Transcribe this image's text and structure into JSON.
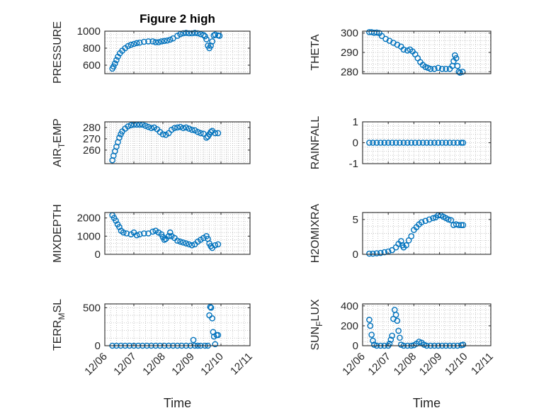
{
  "figure_title": "Figure 2 high",
  "chart_data": [
    {
      "type": "scatter",
      "ylabel": "PRESSURE",
      "title": "Figure 2 high",
      "xlim": [
        0,
        5
      ],
      "ylim": [
        500,
        1000
      ],
      "yticks": [
        600,
        800,
        1000
      ],
      "points": [
        [
          0.26,
          560
        ],
        [
          0.3,
          585
        ],
        [
          0.35,
          620
        ],
        [
          0.4,
          660
        ],
        [
          0.45,
          700
        ],
        [
          0.52,
          740
        ],
        [
          0.6,
          770
        ],
        [
          0.7,
          800
        ],
        [
          0.8,
          825
        ],
        [
          0.9,
          840
        ],
        [
          1.0,
          850
        ],
        [
          1.1,
          860
        ],
        [
          1.2,
          865
        ],
        [
          1.35,
          875
        ],
        [
          1.5,
          880
        ],
        [
          1.65,
          880
        ],
        [
          1.75,
          870
        ],
        [
          1.85,
          870
        ],
        [
          1.95,
          880
        ],
        [
          2.05,
          885
        ],
        [
          2.15,
          890
        ],
        [
          2.25,
          900
        ],
        [
          2.35,
          915
        ],
        [
          2.5,
          945
        ],
        [
          2.6,
          965
        ],
        [
          2.7,
          975
        ],
        [
          2.8,
          980
        ],
        [
          2.9,
          975
        ],
        [
          3.0,
          975
        ],
        [
          3.1,
          980
        ],
        [
          3.2,
          975
        ],
        [
          3.3,
          965
        ],
        [
          3.4,
          955
        ],
        [
          3.45,
          940
        ],
        [
          3.5,
          905
        ],
        [
          3.55,
          830
        ],
        [
          3.6,
          800
        ],
        [
          3.65,
          830
        ],
        [
          3.7,
          880
        ],
        [
          3.75,
          950
        ],
        [
          3.8,
          960
        ],
        [
          3.9,
          950
        ],
        [
          3.95,
          945
        ]
      ]
    },
    {
      "type": "scatter",
      "ylabel": "THETA",
      "xlim": [
        0,
        5
      ],
      "ylim": [
        279,
        301
      ],
      "yticks": [
        280,
        290,
        300
      ],
      "points": [
        [
          0.26,
          300.5
        ],
        [
          0.35,
          300.5
        ],
        [
          0.45,
          300.2
        ],
        [
          0.55,
          300.3
        ],
        [
          0.65,
          300
        ],
        [
          0.75,
          298.5
        ],
        [
          0.9,
          297
        ],
        [
          1.05,
          296
        ],
        [
          1.2,
          295
        ],
        [
          1.35,
          294
        ],
        [
          1.5,
          293
        ],
        [
          1.6,
          291.5
        ],
        [
          1.75,
          291
        ],
        [
          1.85,
          291.5
        ],
        [
          1.95,
          290.5
        ],
        [
          2.05,
          289
        ],
        [
          2.15,
          287
        ],
        [
          2.25,
          285
        ],
        [
          2.35,
          283.5
        ],
        [
          2.45,
          282.5
        ],
        [
          2.55,
          282
        ],
        [
          2.65,
          281.5
        ],
        [
          2.8,
          281.5
        ],
        [
          2.95,
          282
        ],
        [
          3.1,
          281.5
        ],
        [
          3.25,
          281.5
        ],
        [
          3.4,
          281.5
        ],
        [
          3.5,
          283
        ],
        [
          3.55,
          285.5
        ],
        [
          3.6,
          288.5
        ],
        [
          3.65,
          287
        ],
        [
          3.7,
          283
        ],
        [
          3.75,
          280
        ],
        [
          3.8,
          279.5
        ],
        [
          3.9,
          280
        ]
      ]
    },
    {
      "type": "scatter",
      "ylabel": "AIR_TEMP",
      "xlim": [
        0,
        5
      ],
      "ylim": [
        248,
        285
      ],
      "yticks": [
        260,
        270,
        280
      ],
      "points": [
        [
          0.26,
          251
        ],
        [
          0.3,
          255
        ],
        [
          0.35,
          259
        ],
        [
          0.4,
          263
        ],
        [
          0.45,
          267
        ],
        [
          0.5,
          271
        ],
        [
          0.55,
          274
        ],
        [
          0.6,
          276.5
        ],
        [
          0.7,
          279
        ],
        [
          0.8,
          281
        ],
        [
          0.9,
          282
        ],
        [
          1.0,
          282.5
        ],
        [
          1.1,
          282.5
        ],
        [
          1.2,
          282.5
        ],
        [
          1.3,
          282.5
        ],
        [
          1.4,
          281.5
        ],
        [
          1.5,
          280.5
        ],
        [
          1.6,
          279.5
        ],
        [
          1.7,
          280
        ],
        [
          1.8,
          278.5
        ],
        [
          1.9,
          276
        ],
        [
          2.0,
          274
        ],
        [
          2.1,
          273.5
        ],
        [
          2.2,
          275
        ],
        [
          2.3,
          278
        ],
        [
          2.4,
          279.5
        ],
        [
          2.5,
          280
        ],
        [
          2.6,
          280.5
        ],
        [
          2.7,
          279.5
        ],
        [
          2.8,
          280
        ],
        [
          2.9,
          279
        ],
        [
          3.0,
          278
        ],
        [
          3.1,
          277.5
        ],
        [
          3.2,
          276
        ],
        [
          3.3,
          275
        ],
        [
          3.4,
          274.5
        ],
        [
          3.5,
          271
        ],
        [
          3.55,
          272
        ],
        [
          3.6,
          274
        ],
        [
          3.65,
          276
        ],
        [
          3.7,
          277
        ],
        [
          3.8,
          275
        ],
        [
          3.9,
          275
        ]
      ]
    },
    {
      "type": "scatter",
      "ylabel": "RAINFALL",
      "xlim": [
        0,
        5
      ],
      "ylim": [
        -1,
        1
      ],
      "yticks": [
        -1,
        0,
        1
      ],
      "points": [
        [
          0.26,
          0
        ],
        [
          0.4,
          0
        ],
        [
          0.55,
          0
        ],
        [
          0.7,
          0
        ],
        [
          0.85,
          0
        ],
        [
          1.0,
          0
        ],
        [
          1.15,
          0
        ],
        [
          1.3,
          0
        ],
        [
          1.45,
          0
        ],
        [
          1.6,
          0
        ],
        [
          1.75,
          0
        ],
        [
          1.9,
          0
        ],
        [
          2.05,
          0
        ],
        [
          2.2,
          0
        ],
        [
          2.35,
          0
        ],
        [
          2.5,
          0
        ],
        [
          2.65,
          0
        ],
        [
          2.8,
          0
        ],
        [
          2.95,
          0
        ],
        [
          3.1,
          0
        ],
        [
          3.25,
          0
        ],
        [
          3.4,
          0
        ],
        [
          3.55,
          0
        ],
        [
          3.7,
          0
        ],
        [
          3.85,
          0
        ],
        [
          3.92,
          0
        ]
      ]
    },
    {
      "type": "scatter",
      "ylabel": "MIXDEPTH",
      "xlim": [
        0,
        5
      ],
      "ylim": [
        0,
        2300
      ],
      "yticks": [
        0,
        1000,
        2000
      ],
      "points": [
        [
          0.26,
          2150
        ],
        [
          0.32,
          2000
        ],
        [
          0.38,
          1850
        ],
        [
          0.44,
          1650
        ],
        [
          0.5,
          1500
        ],
        [
          0.56,
          1300
        ],
        [
          0.64,
          1200
        ],
        [
          0.75,
          1150
        ],
        [
          0.9,
          1100
        ],
        [
          1.0,
          1200
        ],
        [
          1.1,
          1050
        ],
        [
          1.2,
          1100
        ],
        [
          1.35,
          1150
        ],
        [
          1.5,
          1150
        ],
        [
          1.65,
          1250
        ],
        [
          1.75,
          1300
        ],
        [
          1.85,
          1200
        ],
        [
          1.95,
          1100
        ],
        [
          2.0,
          950
        ],
        [
          2.05,
          800
        ],
        [
          2.1,
          850
        ],
        [
          2.2,
          1000
        ],
        [
          2.25,
          1200
        ],
        [
          2.3,
          1000
        ],
        [
          2.4,
          900
        ],
        [
          2.5,
          750
        ],
        [
          2.6,
          700
        ],
        [
          2.7,
          650
        ],
        [
          2.8,
          600
        ],
        [
          2.9,
          550
        ],
        [
          3.0,
          500
        ],
        [
          3.1,
          550
        ],
        [
          3.2,
          700
        ],
        [
          3.3,
          800
        ],
        [
          3.4,
          900
        ],
        [
          3.5,
          1000
        ],
        [
          3.55,
          850
        ],
        [
          3.6,
          600
        ],
        [
          3.65,
          450
        ],
        [
          3.7,
          350
        ],
        [
          3.8,
          500
        ],
        [
          3.9,
          550
        ]
      ]
    },
    {
      "type": "scatter",
      "ylabel": "H2OMIXRA",
      "xlim": [
        0,
        5
      ],
      "ylim": [
        0,
        6
      ],
      "yticks": [
        0,
        5
      ],
      "points": [
        [
          0.26,
          0.1
        ],
        [
          0.4,
          0.1
        ],
        [
          0.55,
          0.15
        ],
        [
          0.7,
          0.2
        ],
        [
          0.85,
          0.3
        ],
        [
          1.0,
          0.4
        ],
        [
          1.15,
          0.6
        ],
        [
          1.3,
          1.0
        ],
        [
          1.4,
          1.5
        ],
        [
          1.5,
          1.9
        ],
        [
          1.55,
          1.3
        ],
        [
          1.6,
          1.0
        ],
        [
          1.7,
          1.3
        ],
        [
          1.8,
          2.0
        ],
        [
          1.9,
          2.6
        ],
        [
          2.0,
          3.5
        ],
        [
          2.1,
          3.9
        ],
        [
          2.2,
          4.3
        ],
        [
          2.3,
          4.6
        ],
        [
          2.45,
          4.8
        ],
        [
          2.6,
          5.0
        ],
        [
          2.75,
          5.2
        ],
        [
          2.85,
          5.3
        ],
        [
          2.95,
          5.6
        ],
        [
          3.05,
          5.6
        ],
        [
          3.15,
          5.4
        ],
        [
          3.25,
          5.2
        ],
        [
          3.35,
          5.0
        ],
        [
          3.45,
          4.9
        ],
        [
          3.55,
          4.2
        ],
        [
          3.65,
          4.3
        ],
        [
          3.75,
          4.2
        ],
        [
          3.85,
          4.2
        ],
        [
          3.92,
          4.2
        ]
      ]
    },
    {
      "type": "scatter",
      "ylabel": "TERR_MSL",
      "xlim": [
        0,
        5
      ],
      "ylim": [
        0,
        550
      ],
      "yticks": [
        0,
        500
      ],
      "points": [
        [
          0.26,
          0
        ],
        [
          0.4,
          0
        ],
        [
          0.55,
          0
        ],
        [
          0.7,
          0
        ],
        [
          0.85,
          0
        ],
        [
          1.0,
          0
        ],
        [
          1.15,
          0
        ],
        [
          1.3,
          0
        ],
        [
          1.45,
          0
        ],
        [
          1.6,
          0
        ],
        [
          1.75,
          0
        ],
        [
          1.9,
          0
        ],
        [
          2.05,
          0
        ],
        [
          2.2,
          0
        ],
        [
          2.35,
          0
        ],
        [
          2.5,
          0
        ],
        [
          2.65,
          0
        ],
        [
          2.8,
          0
        ],
        [
          2.95,
          0
        ],
        [
          3.1,
          0
        ],
        [
          3.2,
          0
        ],
        [
          3.3,
          0
        ],
        [
          3.45,
          0
        ],
        [
          3.55,
          0
        ],
        [
          3.6,
          400
        ],
        [
          3.63,
          510
        ],
        [
          3.66,
          500
        ],
        [
          3.7,
          360
        ],
        [
          3.73,
          180
        ],
        [
          3.76,
          120
        ],
        [
          3.8,
          20
        ],
        [
          3.85,
          140
        ],
        [
          3.9,
          140
        ],
        [
          3.05,
          75
        ]
      ]
    },
    {
      "type": "scatter",
      "ylabel": "SUN_FLUX",
      "xlim": [
        0,
        5
      ],
      "ylim": [
        0,
        420
      ],
      "yticks": [
        0,
        200,
        400
      ],
      "points": [
        [
          0.26,
          260
        ],
        [
          0.3,
          200
        ],
        [
          0.35,
          110
        ],
        [
          0.4,
          50
        ],
        [
          0.45,
          10
        ],
        [
          0.55,
          0
        ],
        [
          0.7,
          0
        ],
        [
          0.85,
          0
        ],
        [
          1.0,
          0
        ],
        [
          1.05,
          20
        ],
        [
          1.1,
          60
        ],
        [
          1.15,
          100
        ],
        [
          1.2,
          270
        ],
        [
          1.25,
          360
        ],
        [
          1.3,
          310
        ],
        [
          1.35,
          250
        ],
        [
          1.4,
          150
        ],
        [
          1.45,
          80
        ],
        [
          1.5,
          10
        ],
        [
          1.6,
          0
        ],
        [
          1.75,
          0
        ],
        [
          1.9,
          0
        ],
        [
          2.0,
          5
        ],
        [
          2.1,
          20
        ],
        [
          2.2,
          40
        ],
        [
          2.3,
          30
        ],
        [
          2.4,
          10
        ],
        [
          2.5,
          0
        ],
        [
          2.65,
          0
        ],
        [
          2.8,
          0
        ],
        [
          2.95,
          0
        ],
        [
          3.1,
          0
        ],
        [
          3.25,
          0
        ],
        [
          3.4,
          0
        ],
        [
          3.55,
          0
        ],
        [
          3.7,
          0
        ],
        [
          3.85,
          5
        ],
        [
          3.92,
          10
        ]
      ]
    }
  ],
  "xticks": [
    "12/06",
    "12/07",
    "12/08",
    "12/09",
    "12/10",
    "12/11"
  ],
  "xlabel": "Time",
  "colors": {
    "marker": "#0072BD",
    "axis": "#262626",
    "grid": "#b0b0b0"
  }
}
